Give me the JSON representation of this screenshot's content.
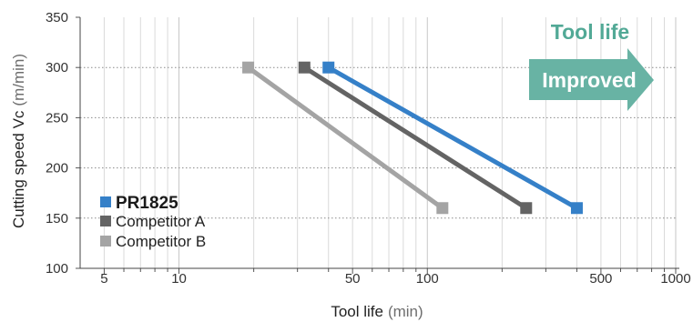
{
  "chart_data": {
    "type": "line",
    "xlabel": "Tool life",
    "xlabel_unit": "(min)",
    "ylabel": "Cutting speed Vc",
    "ylabel_unit": "(m/min)",
    "xscale": "log",
    "xlim": [
      4,
      1000
    ],
    "ylim": [
      100,
      350
    ],
    "xticks": [
      5,
      10,
      50,
      100,
      500,
      1000
    ],
    "yticks": [
      100,
      150,
      200,
      250,
      300,
      350
    ],
    "grid": true,
    "legend": "bottom-left",
    "series": [
      {
        "name": "PR1825",
        "color": "#3580c8",
        "marker": "square",
        "points": [
          [
            40,
            300
          ],
          [
            400,
            160
          ]
        ]
      },
      {
        "name": "Competitor A",
        "color": "#646464",
        "marker": "square",
        "points": [
          [
            32,
            300
          ],
          [
            250,
            160
          ]
        ]
      },
      {
        "name": "Competitor B",
        "color": "#a4a4a4",
        "marker": "square",
        "points": [
          [
            19,
            300
          ],
          [
            115,
            160
          ]
        ]
      }
    ],
    "annotations": [
      {
        "text": "Tool life",
        "color": "#52a996"
      },
      {
        "text": "Improved",
        "shape": "right-arrow",
        "color": "#68b3a4",
        "text_color": "#ffffff"
      }
    ]
  }
}
